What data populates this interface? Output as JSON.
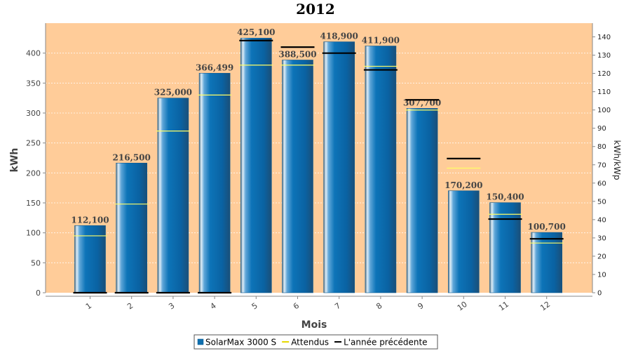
{
  "chart_data": {
    "type": "bar",
    "title": "2012",
    "xlabel": "Mois",
    "ylabel": "kWh",
    "y2label": "kWh/kWp",
    "categories": [
      "1",
      "2",
      "3",
      "4",
      "5",
      "6",
      "7",
      "8",
      "9",
      "10",
      "11",
      "12"
    ],
    "ylim": [
      0,
      450
    ],
    "yticks": [
      0,
      50,
      100,
      150,
      200,
      250,
      300,
      350,
      400
    ],
    "y2lim": [
      0,
      147.5
    ],
    "y2ticks": [
      0,
      10,
      20,
      30,
      40,
      50,
      60,
      70,
      80,
      90,
      100,
      110,
      120,
      130,
      140
    ],
    "series": [
      {
        "name": "SolarMax 3000 S",
        "kind": "bar",
        "values": [
          112.1,
          216.5,
          325.0,
          366.499,
          425.1,
          388.5,
          418.9,
          411.9,
          307.7,
          170.2,
          150.4,
          100.7
        ],
        "labels": [
          "112,100",
          "216,500",
          "325,000",
          "366,499",
          "425,100",
          "388,500",
          "418,900",
          "411,900",
          "307,700",
          "170,200",
          "150,400",
          "100,700"
        ],
        "color": "#0f6fae"
      },
      {
        "name": "Attendus",
        "kind": "marker",
        "values": [
          95,
          148,
          270,
          330,
          380,
          380,
          400,
          378,
          305,
          208,
          131,
          83
        ],
        "color": "#ffff66"
      },
      {
        "name": "L'année précédente",
        "kind": "marker",
        "values": [
          0,
          0,
          0,
          0,
          421,
          410,
          400,
          372,
          322,
          224,
          123,
          90
        ],
        "color": "#000000"
      }
    ],
    "grid": true,
    "legend": "bottom",
    "colors": {
      "plot_background": "#ffcc99",
      "bar": "#0f6fae"
    }
  }
}
